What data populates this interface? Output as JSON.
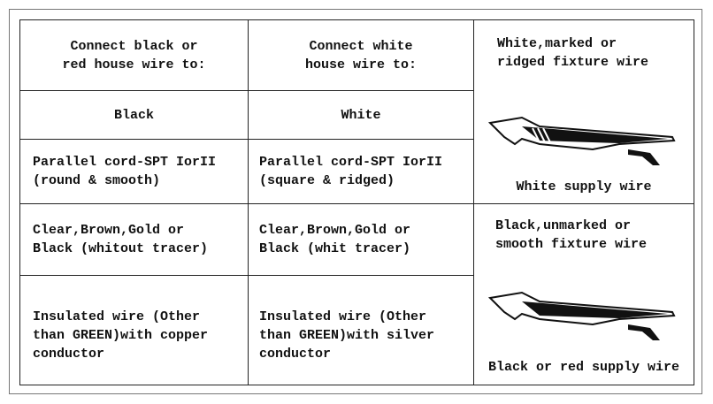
{
  "table": {
    "rows": [
      [
        [
          "Connect black or",
          "red house wire to:"
        ],
        [
          "Connect white",
          "house wire to:"
        ]
      ],
      [
        [
          "Black"
        ],
        [
          "White"
        ]
      ],
      [
        [
          "Parallel cord-SPT IorII",
          "(round & smooth)"
        ],
        [
          "Parallel cord-SPT IorII",
          "(square & ridged)"
        ]
      ],
      [
        [
          "Clear,Brown,Gold or",
          "Black (whitout tracer)"
        ],
        [
          "Clear,Brown,Gold or",
          "Black (whit tracer)"
        ]
      ],
      [
        [
          "Insulated wire (Other",
          "than GREEN)with copper",
          "conductor"
        ],
        [
          "Insulated wire (Other",
          "than GREEN)with silver",
          "conductor"
        ]
      ]
    ],
    "side": [
      {
        "title": [
          "White,marked or",
          "ridged fixture wire"
        ],
        "caption": "White supply wire"
      },
      {
        "title": [
          "Black,unmarked or",
          "smooth fixture wire"
        ],
        "caption": "Black or red supply wire"
      }
    ]
  }
}
